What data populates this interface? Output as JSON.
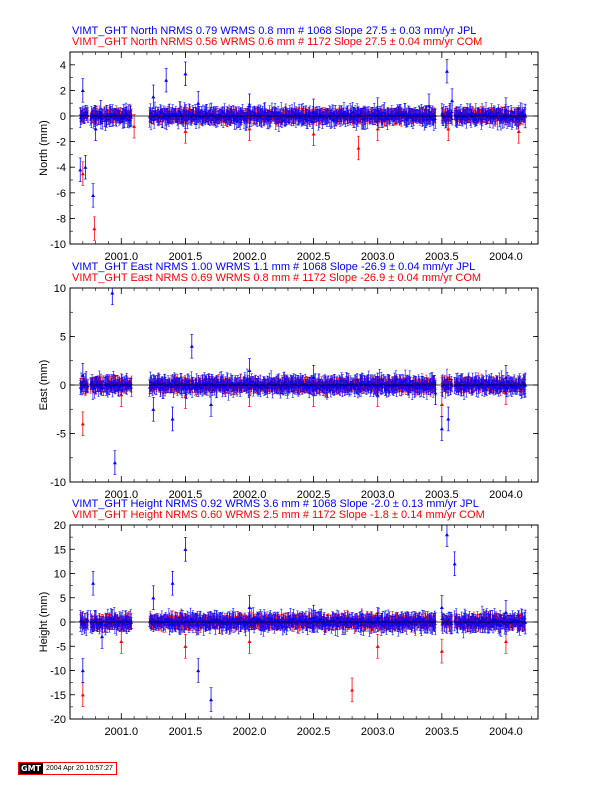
{
  "colors": {
    "primary": "#0000ff",
    "secondary": "#ff0000",
    "frame": "#000000"
  },
  "chart_data": [
    {
      "type": "scatter",
      "ylabel": "North (mm)",
      "ylim": [
        -10,
        5
      ],
      "yticks": [
        -10,
        -8,
        -6,
        -4,
        -2,
        0,
        2,
        4
      ],
      "xlim": [
        2000.6,
        2004.25
      ],
      "xticks": [
        "2001.0",
        "2001.5",
        "2002.0",
        "2002.5",
        "2003.0",
        "2003.5",
        "2004.0"
      ],
      "header": [
        {
          "text": "VIMT_GHT North NRMS 0.79 WRMS  0.8 mm # 1068 Slope   27.5 ±  0.03 mm/yr JPL",
          "color": "#0000ff"
        },
        {
          "text": "VIMT_GHT North NRMS 0.56 WRMS  0.6 mm # 1172 Slope   27.5 ±  0.04 mm/yr COM",
          "color": "#ff0000"
        }
      ],
      "series": [
        {
          "name": "JPL",
          "color": "#0000ff",
          "count": 1068,
          "nrms": 0.79,
          "wrms": 0.8,
          "slope": 27.5,
          "slope_sigma": 0.03,
          "x": [
            2000.68,
            2000.7,
            2000.72,
            2000.78,
            2000.8,
            2000.84,
            2001.02,
            2001.25,
            2001.35,
            2001.5,
            2001.6,
            2002.0,
            2002.5,
            2003.0,
            2003.4,
            2003.54,
            2003.58,
            2004.0,
            2004.15
          ],
          "y": [
            -4.2,
            2.0,
            -4.0,
            -6.2,
            -1.0,
            0.3,
            0.0,
            1.5,
            2.8,
            3.3,
            1.0,
            0.8,
            0.4,
            0.5,
            0.8,
            3.5,
            1.2,
            0.5,
            0.0
          ]
        },
        {
          "name": "COM",
          "color": "#ff0000",
          "count": 1172,
          "nrms": 0.56,
          "wrms": 0.6,
          "slope": 27.5,
          "slope_sigma": 0.04,
          "x": [
            2000.7,
            2000.79,
            2001.1,
            2001.5,
            2002.0,
            2002.5,
            2002.85,
            2003.0,
            2003.55,
            2004.1
          ],
          "y": [
            -4.5,
            -8.8,
            -0.8,
            -1.2,
            -1.0,
            -1.4,
            -2.5,
            -1.0,
            -1.0,
            -1.2
          ]
        }
      ]
    },
    {
      "type": "scatter",
      "ylabel": "East (mm)",
      "ylim": [
        -10,
        10
      ],
      "yticks": [
        -10,
        -5,
        0,
        5,
        10
      ],
      "xlim": [
        2000.6,
        2004.25
      ],
      "xticks": [
        "2001.0",
        "2001.5",
        "2002.0",
        "2002.5",
        "2003.0",
        "2003.5",
        "2004.0"
      ],
      "header": [
        {
          "text": "VIMT_GHT East NRMS 1.00 WRMS  1.1 mm # 1068 Slope  -26.9 ±  0.04 mm/yr JPL",
          "color": "#0000ff"
        },
        {
          "text": "VIMT_GHT East NRMS 0.69 WRMS  0.8 mm # 1172 Slope  -26.9 ±  0.04 mm/yr COM",
          "color": "#ff0000"
        }
      ],
      "series": [
        {
          "name": "JPL",
          "color": "#0000ff",
          "count": 1068,
          "nrms": 1.0,
          "wrms": 1.1,
          "slope": -26.9,
          "slope_sigma": 0.04,
          "x": [
            2000.7,
            2000.93,
            2000.95,
            2001.25,
            2001.4,
            2001.55,
            2001.7,
            2002.0,
            2002.5,
            2003.0,
            2003.45,
            2003.5,
            2003.55,
            2004.0,
            2004.15
          ],
          "y": [
            1.0,
            9.5,
            -8.0,
            -2.5,
            -3.5,
            4.0,
            -2.0,
            1.5,
            0.8,
            0.0,
            -0.8,
            -4.5,
            -3.5,
            0.8,
            0.0
          ]
        },
        {
          "name": "COM",
          "color": "#ff0000",
          "count": 1172,
          "nrms": 0.69,
          "wrms": 0.8,
          "slope": -26.9,
          "slope_sigma": 0.04,
          "x": [
            2000.7,
            2001.0,
            2001.5,
            2002.0,
            2002.5,
            2003.0,
            2003.5,
            2004.0
          ],
          "y": [
            -4.0,
            -1.0,
            -1.2,
            -1.0,
            -1.0,
            -1.0,
            -2.0,
            -0.8
          ]
        }
      ]
    },
    {
      "type": "scatter",
      "ylabel": "Height (mm)",
      "ylim": [
        -20,
        20
      ],
      "yticks": [
        -20,
        -15,
        -10,
        -5,
        0,
        5,
        10,
        15,
        20
      ],
      "xlim": [
        2000.6,
        2004.25
      ],
      "xticks": [
        "2001.0",
        "2001.5",
        "2002.0",
        "2002.5",
        "2003.0",
        "2003.5",
        "2004.0"
      ],
      "header": [
        {
          "text": "VIMT_GHT Height NRMS 0.92 WRMS  3.6 mm # 1068 Slope   -2.0 ±  0.13 mm/yr JPL",
          "color": "#0000ff"
        },
        {
          "text": "VIMT_GHT Height NRMS 0.60 WRMS  2.5 mm # 1172 Slope   -1.8 ±  0.14 mm/yr COM",
          "color": "#ff0000"
        }
      ],
      "series": [
        {
          "name": "JPL",
          "color": "#0000ff",
          "count": 1068,
          "nrms": 0.92,
          "wrms": 3.6,
          "slope": -2.0,
          "slope_sigma": 0.13,
          "x": [
            2000.7,
            2000.78,
            2000.85,
            2001.25,
            2001.4,
            2001.5,
            2001.6,
            2001.7,
            2002.0,
            2002.5,
            2003.0,
            2003.5,
            2003.54,
            2003.6,
            2004.0,
            2004.15
          ],
          "y": [
            -10.0,
            8.0,
            -3.0,
            5.0,
            8.0,
            15.0,
            -10.0,
            -16.0,
            3.0,
            1.0,
            0.5,
            3.0,
            18.0,
            12.0,
            2.0,
            0.0
          ]
        },
        {
          "name": "COM",
          "color": "#ff0000",
          "count": 1172,
          "nrms": 0.6,
          "wrms": 2.5,
          "slope": -1.8,
          "slope_sigma": 0.14,
          "x": [
            2000.7,
            2001.0,
            2001.5,
            2002.0,
            2002.8,
            2003.0,
            2003.5,
            2004.0
          ],
          "y": [
            -15.0,
            -4.0,
            -5.0,
            -4.0,
            -14.0,
            -5.0,
            -6.0,
            -4.0
          ]
        }
      ]
    }
  ],
  "footer": {
    "logo": "GMT",
    "timestamp": "2004 Apr 20 10:57:27"
  }
}
